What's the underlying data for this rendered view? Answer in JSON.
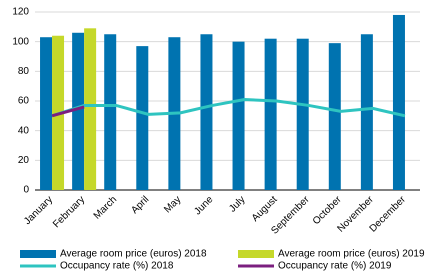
{
  "chart_data": {
    "type": "bar-line",
    "categories": [
      "January",
      "February",
      "March",
      "April",
      "May",
      "June",
      "July",
      "August",
      "September",
      "October",
      "November",
      "December"
    ],
    "series": [
      {
        "name": "Average room price (euros) 2018",
        "type": "bar",
        "color": "#0073b0",
        "values": [
          103,
          106,
          105,
          97,
          103,
          105,
          100,
          102,
          102,
          99,
          105,
          118
        ]
      },
      {
        "name": "Average room price (euros) 2019",
        "type": "bar",
        "color": "#c5d82a",
        "values": [
          104,
          109,
          null,
          null,
          null,
          null,
          null,
          null,
          null,
          null,
          null,
          null
        ]
      },
      {
        "name": "Occupancy rate (%) 2018",
        "type": "line",
        "color": "#2ec4c0",
        "values": [
          50,
          57,
          57,
          51,
          52,
          57,
          61,
          60,
          57,
          53,
          55,
          50
        ]
      },
      {
        "name": "Occupancy rate (%) 2019",
        "type": "line",
        "color": "#7b1f7f",
        "values": [
          50,
          56,
          null,
          null,
          null,
          null,
          null,
          null,
          null,
          null,
          null,
          null
        ]
      }
    ],
    "ylim": [
      0,
      120
    ],
    "yticks": [
      0,
      20,
      40,
      60,
      80,
      100,
      120
    ],
    "grid": true
  }
}
